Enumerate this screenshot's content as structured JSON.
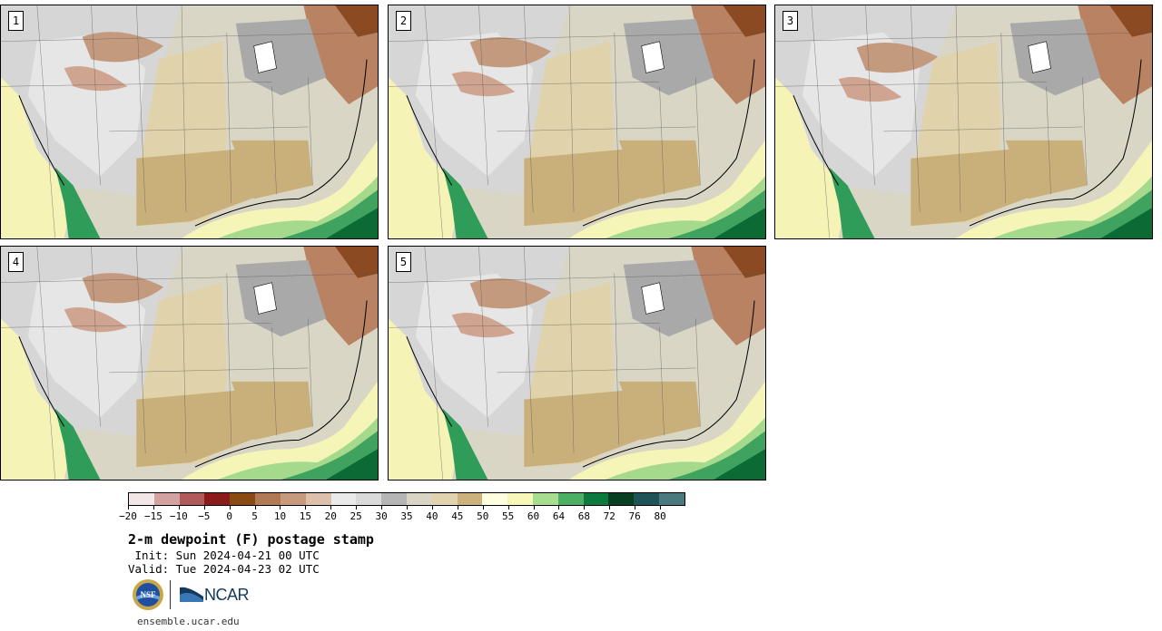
{
  "panels": [
    {
      "label": "1",
      "variant": 0
    },
    {
      "label": "2",
      "variant": 1
    },
    {
      "label": "3",
      "variant": 2
    },
    {
      "label": "4",
      "variant": 3
    },
    {
      "label": "5",
      "variant": 4
    }
  ],
  "colorbar": {
    "colors": [
      "#f2e6e6",
      "#d4a1a1",
      "#b05a5a",
      "#8b1a1a",
      "#8a4a14",
      "#b07a54",
      "#c89a7c",
      "#dcc0ac",
      "#eaeaea",
      "#dadada",
      "#b5b5b5",
      "#d8d5c5",
      "#e1d3ad",
      "#cbb27c",
      "#ffffe0",
      "#f7f7b8",
      "#a6dd8e",
      "#4caf63",
      "#0c7a3c",
      "#093f21",
      "#1e5457",
      "#4a7a7d"
    ],
    "tick_labels": [
      "−20",
      "−15",
      "−10",
      "−5",
      "0",
      "5",
      "10",
      "15",
      "20",
      "25",
      "30",
      "35",
      "40",
      "45",
      "50",
      "55",
      "60",
      "64",
      "68",
      "72",
      "76",
      "80"
    ]
  },
  "title": "2-m dewpoint (F) postage stamp",
  "init": " Init: Sun 2024-04-21 00 UTC",
  "valid": "Valid: Tue 2024-04-23 02 UTC",
  "logos": {
    "nsf": "NSF",
    "ncar": "NCAR"
  },
  "site_url": "ensemble.ucar.edu"
}
